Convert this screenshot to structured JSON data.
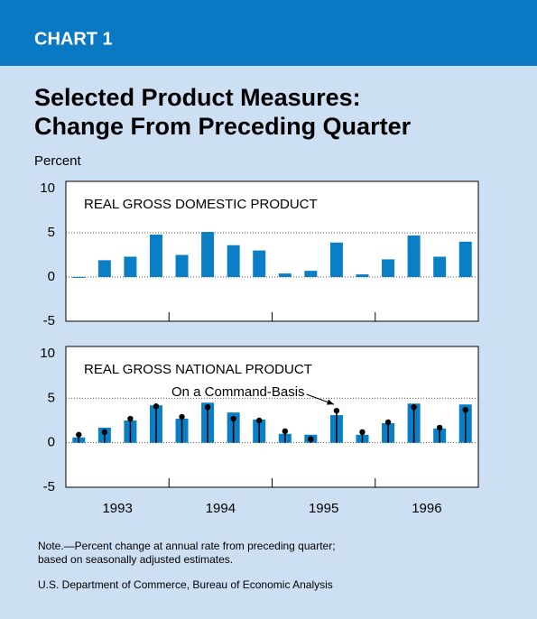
{
  "header": "CHART 1",
  "title": [
    "Selected Product Measures:",
    "Change From Preceding Quarter"
  ],
  "ylabel": "Percent",
  "note": [
    "Note.—Percent change at annual rate from preceding quarter;",
    "based on seasonally adjusted estimates."
  ],
  "source": "U.S. Department of Commerce, Bureau of Economic Analysis",
  "chart_data": [
    {
      "type": "bar",
      "title": "REAL GROSS DOMESTIC PRODUCT",
      "categories": [
        null,
        null,
        null,
        null,
        null,
        null,
        null,
        null,
        null,
        null,
        null,
        null,
        null,
        null,
        null,
        null
      ],
      "values": [
        -0.1,
        1.9,
        2.3,
        4.8,
        2.5,
        5.1,
        3.6,
        3.0,
        0.4,
        0.7,
        3.9,
        0.3,
        2.0,
        4.7,
        2.3,
        4.0
      ],
      "color": "#0a7fc6",
      "ylim": [
        -5,
        10
      ],
      "yticks": [
        -5,
        0,
        5,
        10
      ],
      "grid": true
    },
    {
      "type": "bar",
      "title": "REAL GROSS NATIONAL PRODUCT",
      "categories": [
        null,
        null,
        null,
        null,
        null,
        null,
        null,
        null,
        null,
        null,
        null,
        null,
        null,
        null,
        null,
        null
      ],
      "series": [
        {
          "type": "bar",
          "color": "#0a7fc6",
          "values": [
            0.6,
            1.7,
            2.5,
            4.2,
            2.7,
            4.5,
            3.4,
            2.6,
            1.0,
            0.9,
            3.1,
            0.9,
            2.2,
            4.4,
            1.6,
            4.3
          ]
        },
        {
          "type": "lollipop",
          "name": "On a Command-Basis",
          "color": "#000000",
          "values": [
            0.9,
            1.2,
            2.7,
            4.1,
            2.9,
            4.0,
            2.7,
            2.5,
            1.3,
            0.4,
            3.6,
            1.2,
            2.3,
            4.0,
            1.7,
            3.7
          ]
        }
      ],
      "xgroups": [
        "1993",
        "1994",
        "1995",
        "1996"
      ],
      "ylim": [
        -5,
        10
      ],
      "yticks": [
        -5,
        0,
        5,
        10
      ],
      "grid": true
    }
  ]
}
